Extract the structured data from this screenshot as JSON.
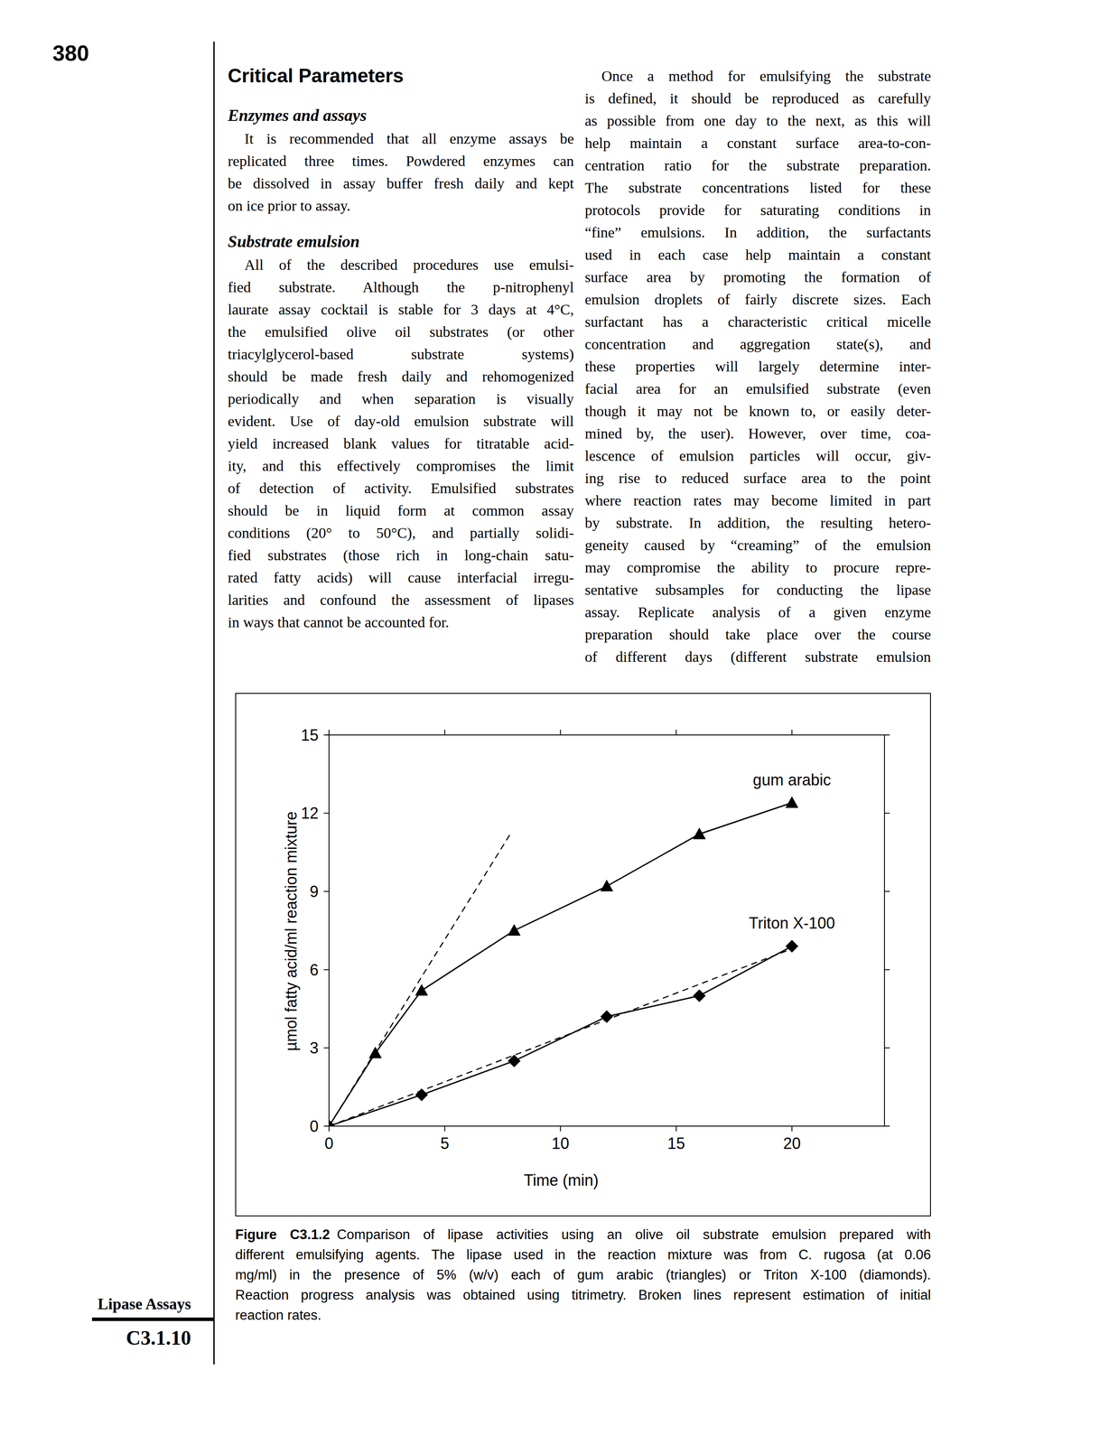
{
  "chart_data": {
    "type": "line",
    "x_label": "Time (min)",
    "y_label": "µmol fatty acid/ml reaction mixture",
    "xlim": [
      0,
      24
    ],
    "xticks": [
      0,
      5,
      10,
      15,
      20
    ],
    "ylim": [
      0,
      15
    ],
    "yticks": [
      0,
      3,
      6,
      9,
      12,
      15
    ],
    "grid": false,
    "series": [
      {
        "name": "gum arabic",
        "color": "#000000",
        "marker": "triangle",
        "line_style": "solid",
        "x": [
          0,
          2,
          4,
          8,
          12,
          16,
          20
        ],
        "values": [
          0,
          2.8,
          5.2,
          7.5,
          9.2,
          11.2,
          12.4
        ]
      },
      {
        "name": "Triton X-100",
        "color": "#000000",
        "marker": "diamond",
        "line_style": "solid",
        "x": [
          0,
          4,
          8,
          12,
          16,
          20
        ],
        "values": [
          0,
          1.2,
          2.5,
          4.2,
          5.0,
          6.9
        ]
      },
      {
        "color": "#000000",
        "marker": "none",
        "line_style": "dashed",
        "x": [
          0,
          7.9
        ],
        "values": [
          0,
          11.3
        ]
      },
      {
        "color": "#000000",
        "marker": "none",
        "line_style": "dashed",
        "x": [
          0,
          20
        ],
        "values": [
          0,
          6.8
        ]
      }
    ]
  },
  "page": {
    "page_number": "380",
    "left_column": {
      "heading": "Critical Parameters",
      "sections": [
        {
          "subheading": "Enzymes and assays",
          "lines": [
            "It is recommended that all enzyme assays be",
            "replicated three times. Powdered enzymes can",
            "be dissolved in assay buffer fresh daily and kept",
            "on ice prior to assay."
          ]
        },
        {
          "subheading": "Substrate emulsion",
          "lines": [
            "All of the described procedures use emulsi-",
            "fied substrate. Although the p-nitrophenyl",
            "laurate assay cocktail is stable for 3 days at 4°C,",
            "the emulsified olive oil substrates (or other",
            "triacylglycerol-based substrate systems)",
            "should be made fresh daily and rehomogenized",
            "periodically and when separation is visually",
            "evident. Use of day-old emulsion substrate will",
            "yield increased blank values for titratable acid-",
            "ity, and this effectively compromises the limit",
            "of detection of activity. Emulsified substrates",
            "should be in liquid form at common assay",
            "conditions (20° to 50°C), and partially solidi-",
            "fied substrates (those rich in long-chain satu-",
            "rated fatty acids) will cause interfacial irregu-",
            "larities and confound the assessment of lipases",
            "in ways that cannot be accounted for."
          ]
        }
      ]
    },
    "right_column": {
      "lines": [
        "Once a method for emulsifying the substrate",
        "is defined, it should be reproduced as carefully",
        "as possible from one day to the next, as this will",
        "help maintain a constant surface area-to-con-",
        "centration ratio for the substrate preparation.",
        "The substrate concentrations listed for these",
        "protocols provide for saturating conditions in",
        "“fine” emulsions. In addition, the surfactants",
        "used in each case help maintain a constant",
        "surface area by promoting the formation of",
        "emulsion droplets of fairly discrete sizes. Each",
        "surfactant has a characteristic critical micelle",
        "concentration and aggregation state(s), and",
        "these properties will largely determine inter-",
        "facial area for an emulsified substrate (even",
        "though it may not be known to, or easily deter-",
        "mined by, the user). However, over time, coa-",
        "lescence of emulsion particles will occur, giv-",
        "ing rise to reduced surface area to the point",
        "where reaction rates may become limited in part",
        "by substrate. In addition, the resulting hetero-",
        "geneity caused by “creaming” of the emulsion",
        "may compromise the ability to procure repre-",
        "sentative subsamples for conducting the lipase",
        "assay. Replicate analysis of a given enzyme",
        "preparation should take place over the course",
        "of different days (different substrate emulsion"
      ]
    },
    "caption": {
      "label": "Figure C3.1.2",
      "lines": [
        "Comparison of lipase activities using an olive oil substrate emulsion prepared with",
        "different emulsifying agents. The lipase used in the reaction mixture was from C. rugosa (at 0.06",
        "mg/ml) in the presence of 5% (w/v) each of gum arabic (triangles) or Triton X-100 (diamonds).",
        "Reaction progress analysis was obtained using titrimetry. Broken lines represent estimation of initial",
        "reaction rates."
      ]
    },
    "sidebar": {
      "title": "Lipase Assays",
      "code": "C3.1.10"
    }
  }
}
